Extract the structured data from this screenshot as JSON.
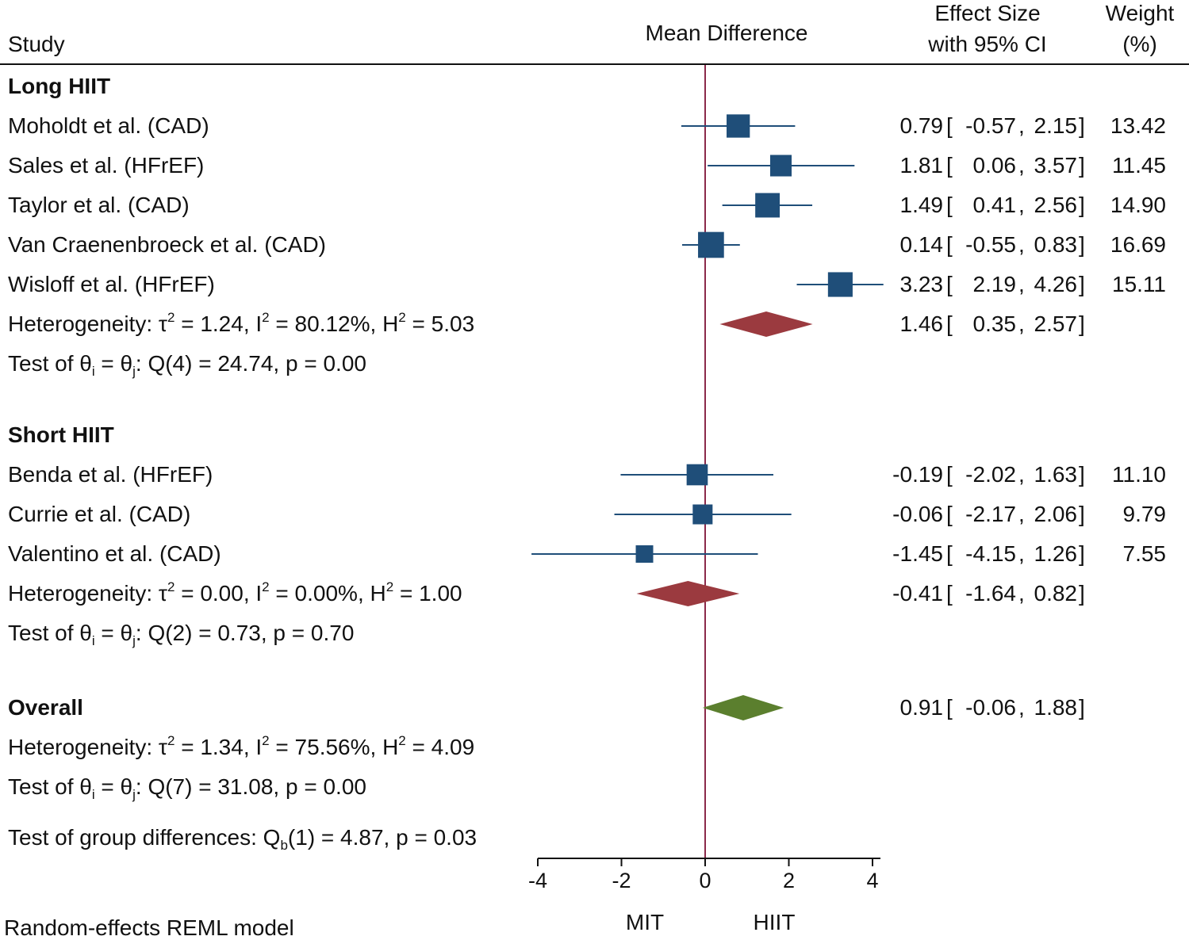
{
  "header": {
    "study": "Study",
    "mean_difference": "Mean Difference",
    "effect_size_line1": "Effect Size",
    "effect_size_line2": "with 95% CI",
    "weight_line1": "Weight",
    "weight_line2": "(%)"
  },
  "footer": {
    "model": "Random-effects REML model",
    "left_favors": "MIT",
    "right_favors": "HIIT"
  },
  "colors": {
    "study_marker": "#1f4e79",
    "subgroup_diamond": "#9b3a3f",
    "overall_diamond": "#5b7f2e",
    "null_line": "#8b2a4a"
  },
  "chart_data": {
    "type": "forest",
    "xlabel": "Mean Difference",
    "xlim": [
      -4,
      4
    ],
    "xticks": [
      -4,
      -2,
      0,
      2,
      4
    ],
    "xtick_labels": [
      "-4",
      "-2",
      "0",
      "2",
      "4"
    ],
    "null_value": 0,
    "groups": [
      {
        "name": "Long HIIT",
        "studies": [
          {
            "label": "Moholdt et al. (CAD)",
            "es": 0.79,
            "lo": -0.57,
            "hi": 2.15,
            "weight": 13.42,
            "es_text": "0.79",
            "lo_text": "-0.57",
            "hi_text": "2.15",
            "weight_text": "13.42"
          },
          {
            "label": "Sales et al. (HFrEF)",
            "es": 1.81,
            "lo": 0.06,
            "hi": 3.57,
            "weight": 11.45,
            "es_text": "1.81",
            "lo_text": "0.06",
            "hi_text": "3.57",
            "weight_text": "11.45"
          },
          {
            "label": "Taylor et al. (CAD)",
            "es": 1.49,
            "lo": 0.41,
            "hi": 2.56,
            "weight": 14.9,
            "es_text": "1.49",
            "lo_text": "0.41",
            "hi_text": "2.56",
            "weight_text": "14.90"
          },
          {
            "label": "Van Craenenbroeck et al. (CAD)",
            "es": 0.14,
            "lo": -0.55,
            "hi": 0.83,
            "weight": 16.69,
            "es_text": "0.14",
            "lo_text": "-0.55",
            "hi_text": "0.83",
            "weight_text": "16.69"
          },
          {
            "label": "Wisloff et al. (HFrEF)",
            "es": 3.23,
            "lo": 2.19,
            "hi": 4.26,
            "weight": 15.11,
            "es_text": "3.23",
            "lo_text": "2.19",
            "hi_text": "4.26",
            "weight_text": "15.11"
          }
        ],
        "pooled": {
          "es": 1.46,
          "lo": 0.35,
          "hi": 2.57,
          "es_text": "1.46",
          "lo_text": "0.35",
          "hi_text": "2.57"
        },
        "heterogeneity": {
          "prefix": "Heterogeneity: τ",
          "sup1": "2",
          "mid1": " = 1.24, I",
          "sup2": "2",
          "mid2": " = 80.12%, H",
          "sup3": "2",
          "tail": " = 5.03"
        },
        "test": {
          "prefix": "Test of θ",
          "sub1": "i",
          "mid": " = θ",
          "sub2": "j",
          "tail": ": Q(4) = 24.74, p = 0.00"
        }
      },
      {
        "name": "Short HIIT",
        "studies": [
          {
            "label": "Benda et al. (HFrEF)",
            "es": -0.19,
            "lo": -2.02,
            "hi": 1.63,
            "weight": 11.1,
            "es_text": "-0.19",
            "lo_text": "-2.02",
            "hi_text": "1.63",
            "weight_text": "11.10"
          },
          {
            "label": "Currie et al. (CAD)",
            "es": -0.06,
            "lo": -2.17,
            "hi": 2.06,
            "weight": 9.79,
            "es_text": "-0.06",
            "lo_text": "-2.17",
            "hi_text": "2.06",
            "weight_text": "9.79"
          },
          {
            "label": "Valentino et al. (CAD)",
            "es": -1.45,
            "lo": -4.15,
            "hi": 1.26,
            "weight": 7.55,
            "es_text": "-1.45",
            "lo_text": "-4.15",
            "hi_text": "1.26",
            "weight_text": "7.55"
          }
        ],
        "pooled": {
          "es": -0.41,
          "lo": -1.64,
          "hi": 0.82,
          "es_text": "-0.41",
          "lo_text": "-1.64",
          "hi_text": "0.82"
        },
        "heterogeneity": {
          "prefix": "Heterogeneity: τ",
          "sup1": "2",
          "mid1": " = 0.00, I",
          "sup2": "2",
          "mid2": " = 0.00%, H",
          "sup3": "2",
          "tail": " = 1.00"
        },
        "test": {
          "prefix": "Test of θ",
          "sub1": "i",
          "mid": " = θ",
          "sub2": "j",
          "tail": ": Q(2) = 0.73, p = 0.70"
        }
      }
    ],
    "overall": {
      "name": "Overall",
      "pooled": {
        "es": 0.91,
        "lo": -0.06,
        "hi": 1.88,
        "es_text": "0.91",
        "lo_text": "-0.06",
        "hi_text": "1.88"
      },
      "heterogeneity": {
        "prefix": "Heterogeneity: τ",
        "sup1": "2",
        "mid1": " = 1.34, I",
        "sup2": "2",
        "mid2": " = 75.56%, H",
        "sup3": "2",
        "tail": " = 4.09"
      },
      "test": {
        "prefix": "Test of θ",
        "sub1": "i",
        "mid": " = θ",
        "sub2": "j",
        "tail": ": Q(7) = 31.08, p = 0.00"
      },
      "group_test": {
        "prefix": "Test of group differences: Q",
        "sub": "b",
        "tail": "(1) = 4.87, p = 0.03"
      }
    }
  }
}
